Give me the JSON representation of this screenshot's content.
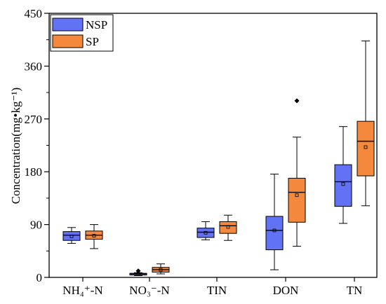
{
  "chart_data": {
    "type": "box",
    "title": "",
    "xlabel": "",
    "ylabel": "Concentration(mg•kg⁻¹)",
    "ylim": [
      0,
      450
    ],
    "yticks": [
      0,
      90,
      180,
      270,
      360,
      450
    ],
    "categories": [
      {
        "label": "NH₄⁺-N"
      },
      {
        "label": "NO₃⁻-N"
      },
      {
        "label": "TIN"
      },
      {
        "label": "DON"
      },
      {
        "label": "TN"
      }
    ],
    "legend": {
      "position": "top-left"
    },
    "series": [
      {
        "name": "NSP",
        "color": "#6272f4",
        "boxes": [
          {
            "min": 58,
            "q1": 63,
            "median": 72,
            "q3": 78,
            "max": 85,
            "mean": 70,
            "outliers": []
          },
          {
            "min": 3,
            "q1": 4,
            "median": 6,
            "q3": 7,
            "max": 8,
            "mean": 6,
            "outliers": [
              11
            ]
          },
          {
            "min": 64,
            "q1": 68,
            "median": 77,
            "q3": 84,
            "max": 95,
            "mean": 76,
            "outliers": []
          },
          {
            "min": 13,
            "q1": 47,
            "median": 80,
            "q3": 104,
            "max": 176,
            "mean": 80,
            "outliers": []
          },
          {
            "min": 92,
            "q1": 121,
            "median": 163,
            "q3": 192,
            "max": 257,
            "mean": 159,
            "outliers": []
          }
        ]
      },
      {
        "name": "SP",
        "color": "#f4893d",
        "boxes": [
          {
            "min": 49,
            "q1": 65,
            "median": 72,
            "q3": 79,
            "max": 90,
            "mean": 71,
            "outliers": []
          },
          {
            "min": 6,
            "q1": 9,
            "median": 13,
            "q3": 17,
            "max": 23,
            "mean": 13,
            "outliers": []
          },
          {
            "min": 63,
            "q1": 75,
            "median": 88,
            "q3": 95,
            "max": 106,
            "mean": 86,
            "outliers": []
          },
          {
            "min": 53,
            "q1": 94,
            "median": 145,
            "q3": 169,
            "max": 239,
            "mean": 140,
            "outliers": [
              301
            ]
          },
          {
            "min": 122,
            "q1": 173,
            "median": 232,
            "q3": 266,
            "max": 403,
            "mean": 222,
            "outliers": []
          }
        ]
      }
    ]
  }
}
